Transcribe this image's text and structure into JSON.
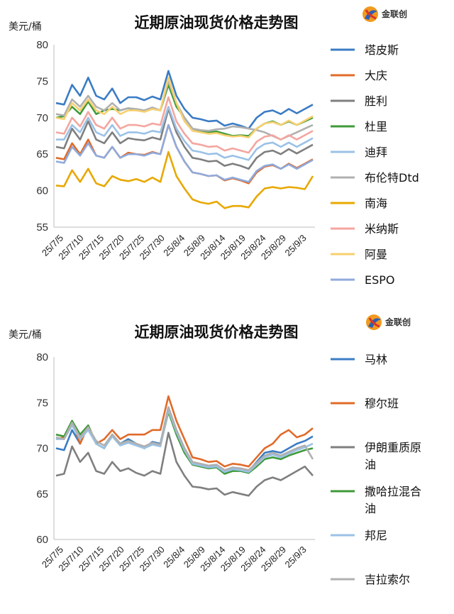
{
  "chart_data": [
    {
      "type": "line",
      "title": "近期原油现货价格走势图",
      "ylabel": "美元/桶",
      "ylim": [
        55,
        80
      ],
      "yticks": [
        55,
        60,
        65,
        70,
        75,
        80
      ],
      "x_tick_labels": [
        "25/7/5",
        "25/7/10",
        "25/7/15",
        "25/7/20",
        "25/7/25",
        "25/7/30",
        "25/8/4",
        "25/8/9",
        "25/8/14",
        "25/8/19",
        "25/8/24",
        "25/8/29",
        "25/9/3"
      ],
      "logo_text": "金联创",
      "series": [
        {
          "name": "塔皮斯",
          "color": "#3b7cc4",
          "values": [
            72,
            71.8,
            74.5,
            73,
            75.5,
            73,
            72.5,
            74,
            72,
            72.8,
            72.8,
            72.4,
            72.9,
            72.5,
            76.4,
            73,
            71.2,
            70,
            69.8,
            69.5,
            69.6,
            68.9,
            69.2,
            68.9,
            68.5,
            70,
            70.8,
            71,
            70.5,
            71.2,
            70.6,
            71.2,
            71.8
          ]
        },
        {
          "name": "大庆",
          "color": "#e06b2a",
          "values": [
            64.5,
            64.3,
            66.5,
            65,
            67,
            64.8,
            64.5,
            66,
            64.5,
            65.2,
            65,
            64.9,
            65.3,
            65,
            69,
            66,
            64,
            62.5,
            62.3,
            62,
            62.1,
            61.4,
            61.7,
            61.4,
            61,
            62.5,
            63.3,
            63.5,
            63,
            63.7,
            63.1,
            63.7,
            64.3
          ]
        },
        {
          "name": "胜利",
          "color": "#7f7f7f",
          "values": [
            66,
            65.8,
            68.5,
            67,
            69.5,
            67,
            66.5,
            68,
            66.5,
            67.2,
            67,
            66.9,
            67.3,
            67,
            71.2,
            68,
            66,
            64.5,
            64.3,
            64,
            64.1,
            63.4,
            63.7,
            63.4,
            63,
            64.5,
            65.3,
            65.5,
            65,
            65.7,
            65.1,
            65.7,
            66.3
          ]
        },
        {
          "name": "杜里",
          "color": "#3f9a3a",
          "values": [
            70,
            70.2,
            71.5,
            70.5,
            72.2,
            70.5,
            71,
            71.2,
            71,
            71.3,
            71,
            70.9,
            71.2,
            71,
            74.5,
            71.5,
            70,
            68.5,
            68.2,
            68,
            68.1,
            67.8,
            67.5,
            67.6,
            67.5,
            68.5,
            69.2,
            69.5,
            69,
            69.5,
            69,
            69.5,
            70
          ]
        },
        {
          "name": "迪拜",
          "color": "#9bc2e6",
          "values": [
            67,
            67,
            69,
            68,
            70,
            68,
            67.5,
            69,
            67.5,
            68,
            68,
            67.8,
            68.2,
            68,
            71.5,
            68.5,
            66.8,
            65.5,
            65.3,
            65,
            65.1,
            64.5,
            64.8,
            64.5,
            64.2,
            65.7,
            66.4,
            66.6,
            66,
            66.6,
            66,
            66.6,
            67.2
          ]
        },
        {
          "name": "布伦特Dtd",
          "color": "#b0b0b0",
          "values": [
            70.5,
            70.3,
            72.5,
            71.5,
            73,
            71.5,
            71,
            72,
            71,
            71.3,
            71.2,
            71,
            71.4,
            71,
            75,
            72,
            70,
            68.5,
            68.3,
            68.2,
            68.4,
            68.5,
            68.8,
            68.7,
            68.5,
            68.3,
            68,
            67.5,
            67,
            67.5,
            68,
            68.5,
            69
          ]
        },
        {
          "name": "南海",
          "color": "#e8a800",
          "values": [
            60.7,
            60.6,
            62.8,
            61.2,
            63,
            61,
            60.6,
            62,
            61.5,
            61.3,
            61.6,
            61.2,
            61.8,
            61.2,
            65.3,
            62,
            60.3,
            58.8,
            58.4,
            58.2,
            58.5,
            57.6,
            57.9,
            57.9,
            57.7,
            59.2,
            60.3,
            60.5,
            60.3,
            60.5,
            60.4,
            60.2,
            62
          ]
        },
        {
          "name": "米纳斯",
          "color": "#f4a6a0",
          "values": [
            68,
            67.8,
            70,
            68.8,
            70.8,
            69,
            68.5,
            70,
            68.5,
            69,
            69,
            68.8,
            69.2,
            69,
            72.8,
            69.5,
            67.8,
            66.5,
            66.3,
            66,
            66.1,
            65.5,
            65.8,
            65.5,
            65.2,
            66.7,
            67.4,
            67.6,
            67,
            67.6,
            67,
            67.6,
            68.2
          ]
        },
        {
          "name": "阿曼",
          "color": "#f7d070",
          "values": [
            70,
            69.8,
            72,
            71,
            72.5,
            71,
            70.5,
            71.5,
            70.5,
            71,
            71,
            70.8,
            71.2,
            71,
            75.5,
            72,
            69.5,
            68.2,
            68,
            67.8,
            67.9,
            67.6,
            67.4,
            67.5,
            67.3,
            68.5,
            69.2,
            69.4,
            69,
            69.6,
            69,
            69.6,
            70.2
          ]
        },
        {
          "name": "ESPO",
          "color": "#8faadc",
          "values": [
            64,
            63.8,
            66,
            64.8,
            66.5,
            64.8,
            64.5,
            66,
            64.5,
            65,
            65,
            64.8,
            65.2,
            65,
            69,
            66,
            64,
            62.5,
            62.3,
            62,
            62.1,
            61.5,
            61.8,
            61.5,
            61.2,
            62.7,
            63.4,
            63.6,
            63,
            63.6,
            63,
            63.6,
            64.2
          ]
        }
      ]
    },
    {
      "type": "line",
      "title": "近期原油现货价格走势图",
      "ylabel": "美元/桶",
      "ylim": [
        60,
        80
      ],
      "yticks": [
        60,
        65,
        70,
        75,
        80
      ],
      "x_tick_labels": [
        "25/7/5",
        "25/7/10",
        "25/7/15",
        "25/7/20",
        "25/7/25",
        "25/7/30",
        "25/8/4",
        "25/8/9",
        "25/8/14",
        "25/8/19",
        "25/8/24",
        "25/8/29",
        "25/9/3"
      ],
      "logo_text": "金联创",
      "series": [
        {
          "name": "马林",
          "color": "#3b7cc4",
          "values": [
            70,
            69.8,
            72,
            70.5,
            72.5,
            70.5,
            70,
            71.5,
            70.5,
            71,
            70.5,
            70,
            70.7,
            70.5,
            74.5,
            72,
            70,
            68.5,
            68.2,
            68,
            68.1,
            67.5,
            67.8,
            67.8,
            67.5,
            68.5,
            69.5,
            69.7,
            69.5,
            70,
            70.5,
            70.8,
            71.3
          ]
        },
        {
          "name": "穆尔班",
          "color": "#e06b2a",
          "values": [
            71,
            71.2,
            73,
            70.5,
            72.5,
            70.5,
            71,
            72,
            71,
            71.5,
            71.5,
            71.5,
            72,
            72,
            75.7,
            73,
            71,
            69,
            68.8,
            68.5,
            68.6,
            68,
            68.3,
            68.2,
            68,
            69,
            70,
            70.5,
            71.5,
            72,
            71.2,
            71.5,
            72.2
          ]
        },
        {
          "name": "伊朗重质原油",
          "color": "#7f7f7f",
          "values": [
            67,
            67.2,
            70.2,
            68.5,
            69.5,
            67.5,
            67.2,
            68.5,
            67.5,
            67.8,
            67.3,
            67,
            67.5,
            67.2,
            71.7,
            68.5,
            67,
            65.8,
            65.7,
            65.5,
            65.6,
            64.9,
            65.2,
            65,
            64.8,
            65.8,
            66.5,
            66.8,
            66.5,
            67,
            67.5,
            68,
            67
          ]
        },
        {
          "name": "撒哈拉混合油",
          "color": "#3f9a3a",
          "values": [
            71.5,
            71.3,
            73,
            71.5,
            72.5,
            70.5,
            70,
            71.5,
            70.5,
            70.8,
            70.5,
            70,
            70.5,
            70.3,
            74,
            71.5,
            69.5,
            68.2,
            68,
            67.8,
            67.9,
            67.2,
            67.5,
            67.5,
            67.3,
            68,
            68.8,
            69,
            68.8,
            69.2,
            69.5,
            69.8,
            70
          ]
        },
        {
          "name": "邦尼",
          "color": "#9bc2e6",
          "values": [
            71,
            71,
            72.5,
            71,
            72,
            70.5,
            70,
            71.3,
            70.3,
            70.6,
            70.3,
            70,
            70.4,
            70.2,
            74.2,
            71.8,
            69.8,
            68.3,
            68.1,
            67.9,
            68,
            67.4,
            67.7,
            67.6,
            67.4,
            68.2,
            69,
            69.3,
            69,
            69.4,
            69.8,
            70.1,
            70.5
          ]
        },
        {
          "name": "吉拉索尔",
          "color": "#b0b0b0",
          "values": [
            71.2,
            71,
            72.8,
            71.2,
            72.3,
            70.8,
            70.3,
            71.5,
            70.5,
            70.8,
            70.5,
            70.2,
            70.6,
            70.4,
            74.5,
            72,
            70,
            68.5,
            68.3,
            68.1,
            68.2,
            67.6,
            67.9,
            67.8,
            67.6,
            68.4,
            69.2,
            69.5,
            69.2,
            69.6,
            70,
            70.3,
            68.8
          ]
        }
      ]
    }
  ]
}
